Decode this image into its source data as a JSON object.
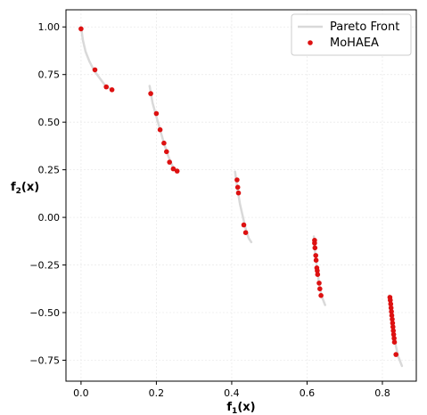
{
  "chart_data": {
    "type": "scatter",
    "xlabel_main": "f",
    "xlabel_sub": "1",
    "xlabel_tail": "(x)",
    "ylabel_main": "f",
    "ylabel_sub": "2",
    "ylabel_tail": "(x)",
    "xlim": [
      -0.04,
      0.89
    ],
    "ylim": [
      -0.86,
      1.09
    ],
    "xticks": [
      0.0,
      0.2,
      0.4,
      0.6,
      0.8
    ],
    "xtick_labels": [
      "0.0",
      "0.2",
      "0.4",
      "0.6",
      "0.8"
    ],
    "yticks": [
      -0.75,
      -0.5,
      -0.25,
      0.0,
      0.25,
      0.5,
      0.75,
      1.0
    ],
    "ytick_labels": [
      "−0.75",
      "−0.50",
      "−0.25",
      "0.00",
      "0.25",
      "0.50",
      "0.75",
      "1.00"
    ],
    "grid": true,
    "legend_position": "top-right",
    "series": [
      {
        "name": "Pareto Front",
        "kind": "line",
        "color": "#d9d9d9",
        "segments": [
          [
            [
              0.0,
              1.0
            ],
            [
              0.005,
              0.93
            ],
            [
              0.012,
              0.87
            ],
            [
              0.022,
              0.82
            ],
            [
              0.035,
              0.77
            ],
            [
              0.05,
              0.73
            ],
            [
              0.065,
              0.69
            ],
            [
              0.083,
              0.67
            ]
          ],
          [
            [
              0.182,
              0.69
            ],
            [
              0.19,
              0.6
            ],
            [
              0.2,
              0.53
            ],
            [
              0.21,
              0.46
            ],
            [
              0.22,
              0.39
            ],
            [
              0.232,
              0.32
            ],
            [
              0.245,
              0.26
            ],
            [
              0.258,
              0.24
            ]
          ],
          [
            [
              0.409,
              0.24
            ],
            [
              0.415,
              0.15
            ],
            [
              0.422,
              0.07
            ],
            [
              0.43,
              0.0
            ],
            [
              0.437,
              -0.06
            ],
            [
              0.445,
              -0.11
            ],
            [
              0.452,
              -0.13
            ]
          ],
          [
            [
              0.618,
              -0.1
            ],
            [
              0.62,
              -0.16
            ],
            [
              0.624,
              -0.23
            ],
            [
              0.628,
              -0.29
            ],
            [
              0.632,
              -0.35
            ],
            [
              0.638,
              -0.41
            ],
            [
              0.648,
              -0.46
            ]
          ],
          [
            [
              0.818,
              -0.41
            ],
            [
              0.821,
              -0.47
            ],
            [
              0.825,
              -0.54
            ],
            [
              0.83,
              -0.61
            ],
            [
              0.835,
              -0.67
            ],
            [
              0.842,
              -0.73
            ],
            [
              0.852,
              -0.78
            ]
          ]
        ]
      },
      {
        "name": "MoHAEA",
        "kind": "scatter",
        "color": "#dd1111",
        "points": [
          [
            0.0,
            0.99
          ],
          [
            0.037,
            0.775
          ],
          [
            0.067,
            0.685
          ],
          [
            0.082,
            0.67
          ],
          [
            0.185,
            0.65
          ],
          [
            0.2,
            0.545
          ],
          [
            0.21,
            0.46
          ],
          [
            0.22,
            0.39
          ],
          [
            0.227,
            0.345
          ],
          [
            0.235,
            0.29
          ],
          [
            0.245,
            0.255
          ],
          [
            0.255,
            0.243
          ],
          [
            0.414,
            0.197
          ],
          [
            0.416,
            0.158
          ],
          [
            0.418,
            0.128
          ],
          [
            0.432,
            -0.04
          ],
          [
            0.437,
            -0.08
          ],
          [
            0.62,
            -0.12
          ],
          [
            0.62,
            -0.135
          ],
          [
            0.621,
            -0.16
          ],
          [
            0.623,
            -0.2
          ],
          [
            0.624,
            -0.225
          ],
          [
            0.626,
            -0.265
          ],
          [
            0.627,
            -0.28
          ],
          [
            0.628,
            -0.3
          ],
          [
            0.632,
            -0.345
          ],
          [
            0.634,
            -0.375
          ],
          [
            0.637,
            -0.41
          ],
          [
            0.82,
            -0.42
          ],
          [
            0.821,
            -0.435
          ],
          [
            0.822,
            -0.455
          ],
          [
            0.823,
            -0.475
          ],
          [
            0.824,
            -0.495
          ],
          [
            0.825,
            -0.515
          ],
          [
            0.826,
            -0.535
          ],
          [
            0.827,
            -0.555
          ],
          [
            0.828,
            -0.575
          ],
          [
            0.829,
            -0.595
          ],
          [
            0.83,
            -0.615
          ],
          [
            0.831,
            -0.635
          ],
          [
            0.832,
            -0.655
          ],
          [
            0.836,
            -0.72
          ]
        ]
      }
    ]
  }
}
